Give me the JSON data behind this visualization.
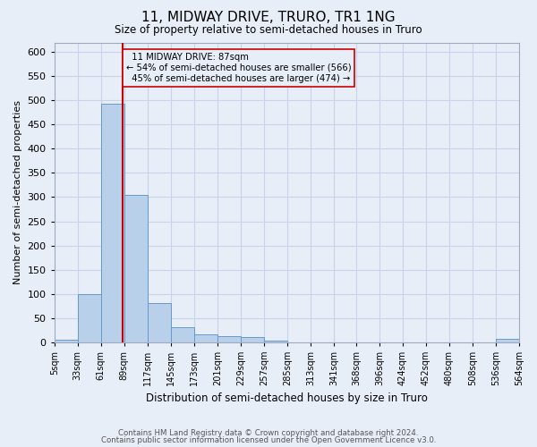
{
  "title": "11, MIDWAY DRIVE, TRURO, TR1 1NG",
  "subtitle": "Size of property relative to semi-detached houses in Truro",
  "xlabel": "Distribution of semi-detached houses by size in Truro",
  "ylabel": "Number of semi-detached properties",
  "bin_edges": [
    5,
    33,
    61,
    89,
    117,
    145,
    173,
    201,
    229,
    257,
    285,
    313,
    341,
    368,
    396,
    424,
    452,
    480,
    508,
    536,
    564
  ],
  "bin_labels": [
    "5sqm",
    "33sqm",
    "61sqm",
    "89sqm",
    "117sqm",
    "145sqm",
    "173sqm",
    "201sqm",
    "229sqm",
    "257sqm",
    "285sqm",
    "313sqm",
    "341sqm",
    "368sqm",
    "396sqm",
    "424sqm",
    "452sqm",
    "480sqm",
    "508sqm",
    "536sqm",
    "564sqm"
  ],
  "counts": [
    5,
    100,
    494,
    305,
    80,
    30,
    16,
    13,
    10,
    3,
    0,
    0,
    0,
    0,
    0,
    0,
    0,
    0,
    0,
    7
  ],
  "bar_color": "#b8d0ea",
  "bar_edge_color": "#6699cc",
  "property_size": 87,
  "property_label": "11 MIDWAY DRIVE: 87sqm",
  "pct_smaller": 54,
  "pct_larger": 45,
  "n_smaller": 566,
  "n_larger": 474,
  "vline_color": "#cc0000",
  "annotation_box_edge_color": "#cc0000",
  "ylim": [
    0,
    620
  ],
  "yticks": [
    0,
    50,
    100,
    150,
    200,
    250,
    300,
    350,
    400,
    450,
    500,
    550,
    600
  ],
  "grid_color": "#c8d4e8",
  "bg_color": "#e8eef8",
  "footer_line1": "Contains HM Land Registry data © Crown copyright and database right 2024.",
  "footer_line2": "Contains public sector information licensed under the Open Government Licence v3.0."
}
